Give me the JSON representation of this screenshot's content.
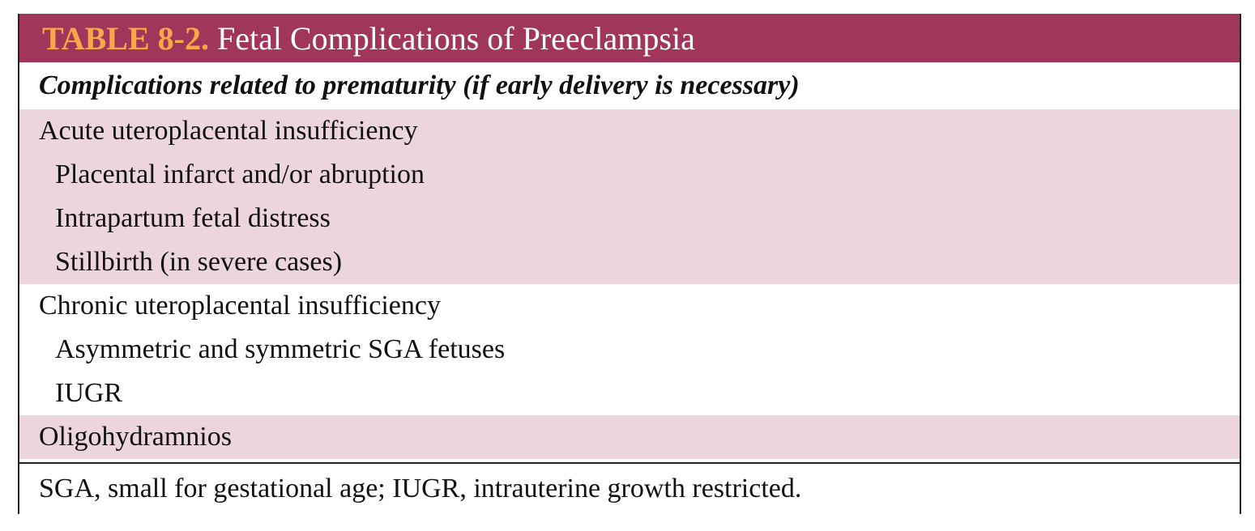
{
  "header": {
    "label": "TABLE 8-2.",
    "title": "Fetal Complications of Preeclampsia"
  },
  "table": {
    "section_heading": "Complications related to prematurity (if early delivery is necessary)",
    "groups": [
      {
        "heading": "Acute uteroplacental insufficiency",
        "items": [
          "Placental infarct and/or abruption",
          "Intrapartum fetal distress",
          "Stillbirth (in severe cases)"
        ]
      },
      {
        "heading": "Chronic uteroplacental insufficiency",
        "items": [
          "Asymmetric and symmetric SGA fetuses",
          "IUGR"
        ]
      },
      {
        "heading": "Oligohydramnios",
        "items": []
      }
    ]
  },
  "footnote": "SGA, small for gestational age; IUGR, intrauterine growth restricted."
}
